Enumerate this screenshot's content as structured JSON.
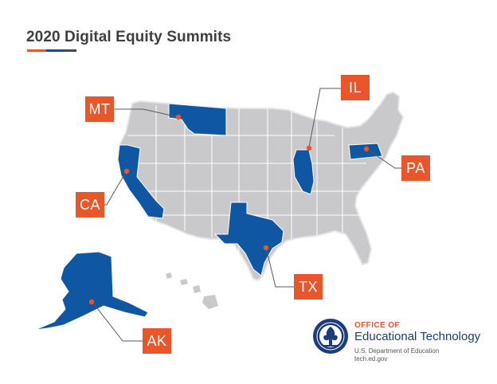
{
  "title": "2020 Digital Equity Summits",
  "colors": {
    "highlight_state": "#0f56a3",
    "base_state": "#c9c9cc",
    "state_border": "#ffffff",
    "shadow": "#e6e6e6",
    "accent_orange": "#e8562a",
    "accent_blue": "#1e4a86",
    "accent_dark": "#45484d",
    "leader_line": "#5a5a5a",
    "marker": "#e8562a"
  },
  "summit_states": [
    {
      "code": "MT",
      "state_name": "Montana"
    },
    {
      "code": "IL",
      "state_name": "Illinois"
    },
    {
      "code": "CA",
      "state_name": "California"
    },
    {
      "code": "PA",
      "state_name": "Pennsylvania"
    },
    {
      "code": "TX",
      "state_name": "Texas"
    },
    {
      "code": "AK",
      "state_name": "Alaska"
    }
  ],
  "logo": {
    "line1": "OFFICE OF",
    "line2": "Educational Technology",
    "line3": "U.S. Department of Education",
    "line4": "tech.ed.gov",
    "seal_icon": "department-of-education-seal-icon"
  }
}
